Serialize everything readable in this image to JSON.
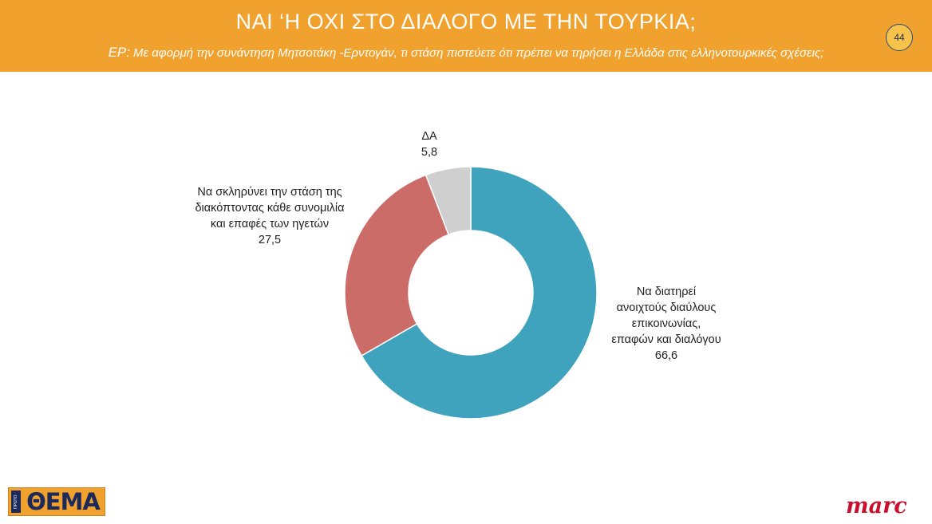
{
  "header": {
    "title": "ΝΑΙ ‘Η ΟΧΙ ΣΤΟ ΔΙΑΛΟΓΟ ΜΕ ΤΗΝ ΤΟΥΡΚΙΑ;",
    "question_prefix": "ΕΡ:",
    "question": "Με αφορμή την συνάντηση Μητσοτάκη -Ερντογάν, τι στάση πιστεύετε ότι πρέπει να τηρήσει η Ελλάδα στις ελληνοτουρκικές σχέσεις;",
    "page_number": "44"
  },
  "colors": {
    "header_bg": "#F0A12E",
    "slice_dialogue": "#3FA3BE",
    "slice_harden": "#CC6C69",
    "slice_dk": "#CFCFCF"
  },
  "chart_data": {
    "type": "pie",
    "subtype": "donut",
    "slices": [
      {
        "label_lines": [
          "Να διατηρεί",
          "ανοιχτούς διαύλους",
          "επικοινωνίας,",
          "επαφών και διαλόγου"
        ],
        "value": 66.6,
        "value_label": "66,6",
        "color": "#3FA3BE"
      },
      {
        "label_lines": [
          "Να σκληρύνει την στάση της",
          "διακόπτοντας κάθε συνομιλία",
          "και επαφές των ηγετών"
        ],
        "value": 27.5,
        "value_label": "27,5",
        "color": "#CC6C69"
      },
      {
        "label_lines": [
          "ΔΑ"
        ],
        "value": 5.8,
        "value_label": "5,8",
        "color": "#CFCFCF"
      }
    ]
  },
  "logos": {
    "left_text": "ΘΕΜΑ",
    "left_side_text": "ΠΡΩΤΟ",
    "right_text": "marc"
  }
}
